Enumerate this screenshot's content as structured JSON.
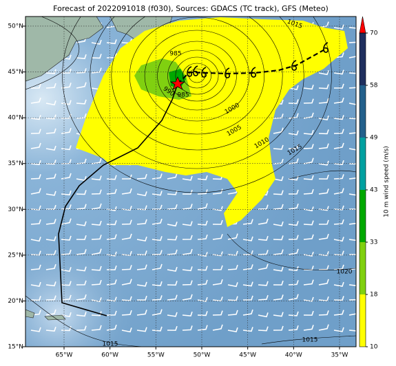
{
  "title": "Forecast of 2022091018 (f030), Sources: GDACS (TC track), GFS (Meteo)",
  "map": {
    "lonlim": [
      -69.2,
      -33.2
    ],
    "latlim": [
      15,
      51.05
    ],
    "lon_ticks": [
      {
        "value": -65,
        "label": "65°W"
      },
      {
        "value": -60,
        "label": "60°W"
      },
      {
        "value": -55,
        "label": "55°W"
      },
      {
        "value": -50,
        "label": "50°W"
      },
      {
        "value": -45,
        "label": "45°W"
      },
      {
        "value": -40,
        "label": "40°W"
      },
      {
        "value": -35,
        "label": "35°W"
      }
    ],
    "lat_ticks": [
      {
        "value": 15,
        "label": "15°N"
      },
      {
        "value": 20,
        "label": "20°N"
      },
      {
        "value": 25,
        "label": "25°N"
      },
      {
        "value": 30,
        "label": "30°N"
      },
      {
        "value": 35,
        "label": "35°N"
      },
      {
        "value": 40,
        "label": "40°N"
      },
      {
        "value": 45,
        "label": "45°N"
      },
      {
        "value": 50,
        "label": "50°N"
      }
    ],
    "contour_labels": [
      "1015",
      "985",
      "990",
      "985",
      "1000",
      "1005",
      "1010",
      "1015",
      "1020",
      "1015",
      "1015"
    ]
  },
  "colorbar": {
    "label": "10 m wind speed (m/s)",
    "ticks": [
      10,
      18,
      33,
      43,
      49,
      58,
      70
    ],
    "colors": [
      "#ffff00",
      "#80d010",
      "#00a800",
      "#00a0a0",
      "#23608c",
      "#1f2f5e"
    ],
    "extend_color": "#ff0000"
  }
}
